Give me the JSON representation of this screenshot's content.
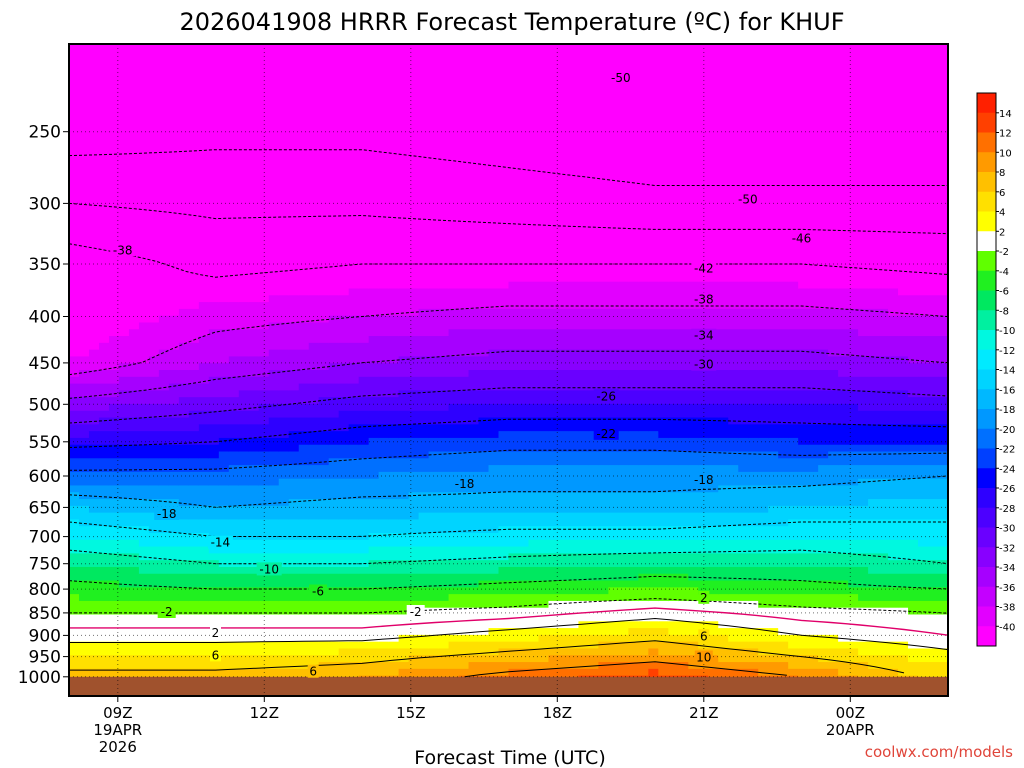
{
  "chart_data": {
    "type": "heatmap",
    "title": "2026041908 HRRR Forecast Temperature (ºC) for KHUF",
    "xlabel": "Forecast Time (UTC)",
    "ylabel": "",
    "watermark": "coolwx.com/models",
    "y_axis": {
      "scale": "log-pressure",
      "range": [
        1050,
        200
      ],
      "ticks": [
        250,
        300,
        350,
        400,
        450,
        500,
        550,
        600,
        650,
        700,
        750,
        800,
        850,
        900,
        950,
        1000
      ]
    },
    "x_axis": {
      "range_hours_utc": [
        8,
        26
      ],
      "ticks": [
        {
          "hour": 9,
          "label": "09Z",
          "sub": "19APR",
          "sub2": "2026"
        },
        {
          "hour": 12,
          "label": "12Z",
          "sub": "",
          "sub2": ""
        },
        {
          "hour": 15,
          "label": "15Z",
          "sub": "",
          "sub2": ""
        },
        {
          "hour": 18,
          "label": "18Z",
          "sub": "",
          "sub2": ""
        },
        {
          "hour": 21,
          "label": "21Z",
          "sub": "",
          "sub2": ""
        },
        {
          "hour": 24,
          "label": "00Z",
          "sub": "20APR",
          "sub2": ""
        }
      ]
    },
    "grid": true,
    "surface_pressure_hpa": 1000,
    "colorbar": {
      "placement": "right",
      "levels": [
        -40,
        -38,
        -36,
        -34,
        -32,
        -30,
        -28,
        -26,
        -24,
        -22,
        -20,
        -18,
        -16,
        -14,
        -12,
        -10,
        -8,
        -6,
        -4,
        -2,
        2,
        4,
        6,
        8,
        10,
        12,
        14
      ],
      "labels": [
        "14",
        "12",
        "10",
        "8",
        "6",
        "4",
        "2",
        "-2",
        "-4",
        "-6",
        "-8",
        "-10",
        "-12",
        "-14",
        "-16",
        "-18",
        "-20",
        "-22",
        "-24",
        "-26",
        "-28",
        "-30",
        "-32",
        "-34",
        "-36",
        "-38",
        "-40"
      ],
      "colors": [
        "#ff00ff",
        "#e200ff",
        "#c400ff",
        "#a600ff",
        "#8800ff",
        "#6a00ff",
        "#4c00ff",
        "#2e00ff",
        "#0000ff",
        "#0040ff",
        "#0070ff",
        "#0098ff",
        "#00b8ff",
        "#00d4ff",
        "#00eaff",
        "#00f8e0",
        "#00f0a0",
        "#00e860",
        "#20f020",
        "#60ff00",
        "#ffffff",
        "#ffff00",
        "#ffe000",
        "#ffc000",
        "#ff9a00",
        "#ff7000",
        "#ff4000",
        "#ff2000"
      ]
    },
    "temperature_profiles": [
      {
        "hour": 8.0,
        "levels_hpa": [
          1000,
          950,
          900,
          850,
          800,
          750,
          700,
          650,
          600,
          550,
          500,
          450,
          400,
          350,
          300,
          250,
          200
        ],
        "temps_c": [
          7,
          4,
          1,
          -2,
          -5,
          -8,
          -12,
          -16,
          -21,
          -27,
          -33,
          -40,
          -42,
          -40,
          -46,
          -52,
          -55
        ]
      },
      {
        "hour": 11.0,
        "levels_hpa": [
          1000,
          950,
          900,
          850,
          800,
          750,
          700,
          650,
          600,
          550,
          500,
          450,
          400,
          350,
          300,
          250,
          200
        ],
        "temps_c": [
          7,
          4,
          1,
          -2,
          -6,
          -10,
          -14,
          -18,
          -21,
          -26,
          -31,
          -36,
          -39,
          -43,
          -47,
          -51,
          -54
        ]
      },
      {
        "hour": 14.0,
        "levels_hpa": [
          1000,
          950,
          900,
          850,
          800,
          750,
          700,
          650,
          600,
          550,
          500,
          450,
          400,
          350,
          300,
          250,
          200
        ],
        "temps_c": [
          8,
          5,
          1,
          -2,
          -6,
          -10,
          -14,
          -17,
          -20,
          -24,
          -29,
          -34,
          -38,
          -42,
          -47,
          -51,
          -54
        ]
      },
      {
        "hour": 17.0,
        "levels_hpa": [
          1000,
          950,
          900,
          850,
          800,
          750,
          700,
          650,
          600,
          550,
          500,
          450,
          400,
          350,
          300,
          250,
          200
        ],
        "temps_c": [
          11,
          7,
          3,
          -1,
          -5,
          -9,
          -13,
          -17,
          -19,
          -23,
          -28,
          -33,
          -37,
          -42,
          -48,
          -52,
          -55
        ]
      },
      {
        "hour": 20.0,
        "levels_hpa": [
          1000,
          950,
          900,
          850,
          800,
          750,
          700,
          650,
          600,
          550,
          500,
          450,
          400,
          350,
          300,
          250,
          200
        ],
        "temps_c": [
          13,
          9,
          5,
          1,
          -4,
          -8,
          -13,
          -17,
          -19,
          -23,
          -28,
          -33,
          -37,
          -42,
          -49,
          -53,
          -55
        ]
      },
      {
        "hour": 23.0,
        "levels_hpa": [
          1000,
          950,
          900,
          850,
          800,
          750,
          700,
          650,
          600,
          550,
          500,
          450,
          400,
          350,
          300,
          250,
          200
        ],
        "temps_c": [
          10,
          6,
          2,
          -1,
          -5,
          -8,
          -12,
          -16,
          -19,
          -24,
          -28,
          -33,
          -37,
          -42,
          -49,
          -53,
          -55
        ]
      },
      {
        "hour": 26.0,
        "levels_hpa": [
          1000,
          950,
          900,
          850,
          800,
          750,
          700,
          650,
          600,
          550,
          500,
          450,
          400,
          350,
          300,
          250,
          200
        ],
        "temps_c": [
          5,
          3,
          0,
          -2,
          -6,
          -10,
          -13,
          -15,
          -18,
          -24,
          -29,
          -34,
          -38,
          -43,
          -49,
          -53,
          -56
        ]
      }
    ],
    "contour_labels": [
      {
        "text": "-50",
        "hour": 19.3,
        "p": 218
      },
      {
        "text": "-50",
        "hour": 21.9,
        "p": 297
      },
      {
        "text": "-46",
        "hour": 23.0,
        "p": 328
      },
      {
        "text": "-42",
        "hour": 21.0,
        "p": 354
      },
      {
        "text": "-38",
        "hour": 9.1,
        "p": 338
      },
      {
        "text": "-38",
        "hour": 21.0,
        "p": 383
      },
      {
        "text": "-34",
        "hour": 21.0,
        "p": 420
      },
      {
        "text": "-30",
        "hour": 21.0,
        "p": 452
      },
      {
        "text": "-26",
        "hour": 19.0,
        "p": 490
      },
      {
        "text": "-22",
        "hour": 19.0,
        "p": 539
      },
      {
        "text": "-18",
        "hour": 16.1,
        "p": 612
      },
      {
        "text": "-18",
        "hour": 21.0,
        "p": 606
      },
      {
        "text": "-18",
        "hour": 10.0,
        "p": 661
      },
      {
        "text": "-14",
        "hour": 11.1,
        "p": 711
      },
      {
        "text": "-10",
        "hour": 12.1,
        "p": 761
      },
      {
        "text": "-6",
        "hour": 13.1,
        "p": 805
      },
      {
        "text": "-2",
        "hour": 10.0,
        "p": 848
      },
      {
        "text": "-2",
        "hour": 15.1,
        "p": 848
      },
      {
        "text": "2",
        "hour": 21.0,
        "p": 818
      },
      {
        "text": "2",
        "hour": 11.0,
        "p": 895
      },
      {
        "text": "6",
        "hour": 11.0,
        "p": 947
      },
      {
        "text": "6",
        "hour": 13.0,
        "p": 987
      },
      {
        "text": "6",
        "hour": 21.0,
        "p": 902
      },
      {
        "text": "10",
        "hour": 21.0,
        "p": 952
      }
    ]
  }
}
